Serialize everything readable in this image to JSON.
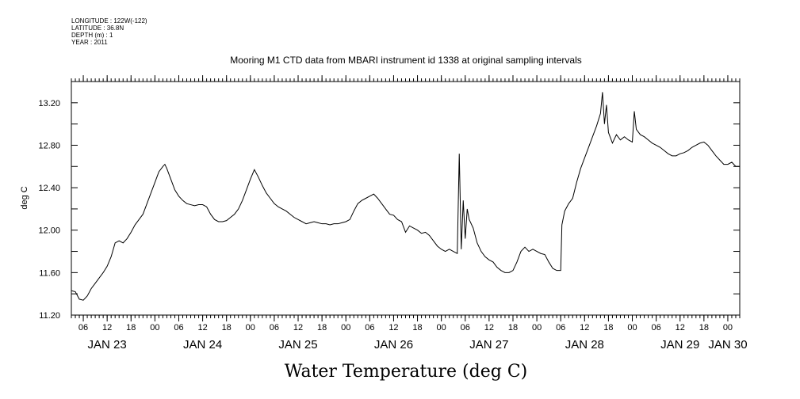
{
  "metadata": [
    "LONGITUDE : 122W(-122)",
    "LATITUDE : 36.8N",
    "DEPTH (m) : 1",
    "YEAR : 2011"
  ],
  "chart_data": {
    "type": "line",
    "title": "Mooring M1 CTD data from MBARI instrument id 1338 at original sampling intervals",
    "xlabel": "Water Temperature (deg C)",
    "ylabel": "deg C",
    "xlim_hours": [
      3,
      171
    ],
    "ylim": [
      11.2,
      13.4
    ],
    "yticks": [
      "11.20",
      "11.60",
      "12.00",
      "12.40",
      "12.80",
      "13.20"
    ],
    "hour_ticks": [
      "06",
      "12",
      "18",
      "00",
      "06",
      "12",
      "18",
      "00",
      "06",
      "12",
      "18",
      "00",
      "06",
      "12",
      "18",
      "00",
      "06",
      "12",
      "18",
      "00",
      "06",
      "12",
      "18",
      "00",
      "06",
      "12",
      "18",
      "00"
    ],
    "hour_ticks_start": 6,
    "day_labels": [
      "JAN 23",
      "JAN 24",
      "JAN 25",
      "JAN 26",
      "JAN 27",
      "JAN 28",
      "JAN 29",
      "JAN 30"
    ],
    "day_label_hours": [
      12,
      36,
      60,
      84,
      108,
      132,
      156,
      168
    ],
    "series": [
      {
        "points": [
          [
            3,
            11.43
          ],
          [
            4,
            11.42
          ],
          [
            5,
            11.35
          ],
          [
            6,
            11.34
          ],
          [
            7,
            11.38
          ],
          [
            8,
            11.45
          ],
          [
            9,
            11.5
          ],
          [
            10,
            11.55
          ],
          [
            11,
            11.6
          ],
          [
            12,
            11.66
          ],
          [
            13,
            11.75
          ],
          [
            14,
            11.88
          ],
          [
            15,
            11.9
          ],
          [
            16,
            11.88
          ],
          [
            17,
            11.92
          ],
          [
            18,
            11.98
          ],
          [
            19,
            12.05
          ],
          [
            20,
            12.1
          ],
          [
            21,
            12.15
          ],
          [
            22,
            12.25
          ],
          [
            23,
            12.35
          ],
          [
            24,
            12.45
          ],
          [
            24.5,
            12.5
          ],
          [
            25,
            12.55
          ],
          [
            26,
            12.6
          ],
          [
            26.5,
            12.62
          ],
          [
            27,
            12.58
          ],
          [
            28,
            12.48
          ],
          [
            29,
            12.38
          ],
          [
            30,
            12.32
          ],
          [
            31,
            12.28
          ],
          [
            32,
            12.25
          ],
          [
            33,
            12.24
          ],
          [
            34,
            12.23
          ],
          [
            35,
            12.24
          ],
          [
            36,
            12.24
          ],
          [
            37,
            12.22
          ],
          [
            38,
            12.15
          ],
          [
            39,
            12.1
          ],
          [
            40,
            12.08
          ],
          [
            41,
            12.08
          ],
          [
            42,
            12.09
          ],
          [
            43,
            12.12
          ],
          [
            44,
            12.15
          ],
          [
            45,
            12.2
          ],
          [
            46,
            12.28
          ],
          [
            47,
            12.38
          ],
          [
            48,
            12.48
          ],
          [
            49,
            12.57
          ],
          [
            50,
            12.5
          ],
          [
            51,
            12.42
          ],
          [
            52,
            12.35
          ],
          [
            53,
            12.3
          ],
          [
            54,
            12.25
          ],
          [
            55,
            12.22
          ],
          [
            56,
            12.2
          ],
          [
            57,
            12.18
          ],
          [
            58,
            12.15
          ],
          [
            59,
            12.12
          ],
          [
            60,
            12.1
          ],
          [
            61,
            12.08
          ],
          [
            62,
            12.06
          ],
          [
            63,
            12.07
          ],
          [
            64,
            12.08
          ],
          [
            65,
            12.07
          ],
          [
            66,
            12.06
          ],
          [
            67,
            12.06
          ],
          [
            68,
            12.05
          ],
          [
            69,
            12.06
          ],
          [
            70,
            12.06
          ],
          [
            71,
            12.07
          ],
          [
            72,
            12.08
          ],
          [
            73,
            12.1
          ],
          [
            74,
            12.18
          ],
          [
            75,
            12.25
          ],
          [
            76,
            12.28
          ],
          [
            77,
            12.3
          ],
          [
            78,
            12.32
          ],
          [
            79,
            12.34
          ],
          [
            80,
            12.3
          ],
          [
            81,
            12.25
          ],
          [
            82,
            12.2
          ],
          [
            83,
            12.15
          ],
          [
            84,
            12.14
          ],
          [
            85,
            12.1
          ],
          [
            86,
            12.08
          ],
          [
            87,
            11.98
          ],
          [
            88,
            12.04
          ],
          [
            89,
            12.02
          ],
          [
            90,
            12.0
          ],
          [
            91,
            11.97
          ],
          [
            92,
            11.98
          ],
          [
            93,
            11.95
          ],
          [
            94,
            11.9
          ],
          [
            95,
            11.85
          ],
          [
            96,
            11.82
          ],
          [
            97,
            11.8
          ],
          [
            98,
            11.82
          ],
          [
            99,
            11.8
          ],
          [
            100,
            11.78
          ],
          [
            100.5,
            12.72
          ],
          [
            101,
            11.82
          ],
          [
            101.5,
            12.28
          ],
          [
            102,
            11.92
          ],
          [
            102.5,
            12.2
          ],
          [
            103,
            12.1
          ],
          [
            104,
            12.02
          ],
          [
            105,
            11.88
          ],
          [
            106,
            11.8
          ],
          [
            107,
            11.75
          ],
          [
            108,
            11.72
          ],
          [
            109,
            11.7
          ],
          [
            110,
            11.65
          ],
          [
            111,
            11.62
          ],
          [
            112,
            11.6
          ],
          [
            113,
            11.6
          ],
          [
            114,
            11.62
          ],
          [
            115,
            11.7
          ],
          [
            116,
            11.8
          ],
          [
            117,
            11.84
          ],
          [
            118,
            11.8
          ],
          [
            119,
            11.82
          ],
          [
            120,
            11.8
          ],
          [
            121,
            11.78
          ],
          [
            122,
            11.77
          ],
          [
            123,
            11.7
          ],
          [
            124,
            11.64
          ],
          [
            125,
            11.62
          ],
          [
            126,
            11.62
          ],
          [
            126.3,
            12.05
          ],
          [
            127,
            12.18
          ],
          [
            128,
            12.25
          ],
          [
            129,
            12.3
          ],
          [
            130,
            12.45
          ],
          [
            131,
            12.58
          ],
          [
            132,
            12.68
          ],
          [
            133,
            12.78
          ],
          [
            134,
            12.88
          ],
          [
            135,
            12.98
          ],
          [
            136,
            13.1
          ],
          [
            136.5,
            13.3
          ],
          [
            137,
            13.0
          ],
          [
            137.5,
            13.18
          ],
          [
            138,
            12.92
          ],
          [
            139,
            12.82
          ],
          [
            140,
            12.9
          ],
          [
            141,
            12.85
          ],
          [
            142,
            12.88
          ],
          [
            143,
            12.85
          ],
          [
            144,
            12.83
          ],
          [
            144.5,
            13.12
          ],
          [
            145,
            12.95
          ],
          [
            146,
            12.9
          ],
          [
            147,
            12.88
          ],
          [
            148,
            12.85
          ],
          [
            149,
            12.82
          ],
          [
            150,
            12.8
          ],
          [
            151,
            12.78
          ],
          [
            152,
            12.75
          ],
          [
            153,
            12.72
          ],
          [
            154,
            12.7
          ],
          [
            155,
            12.7
          ],
          [
            156,
            12.72
          ],
          [
            157,
            12.73
          ],
          [
            158,
            12.75
          ],
          [
            159,
            12.78
          ],
          [
            160,
            12.8
          ],
          [
            161,
            12.82
          ],
          [
            162,
            12.83
          ],
          [
            163,
            12.8
          ],
          [
            164,
            12.75
          ],
          [
            165,
            12.7
          ],
          [
            166,
            12.66
          ],
          [
            167,
            12.62
          ],
          [
            168,
            12.62
          ],
          [
            169,
            12.64
          ],
          [
            170,
            12.6
          ],
          [
            171,
            12.6
          ]
        ]
      }
    ]
  }
}
